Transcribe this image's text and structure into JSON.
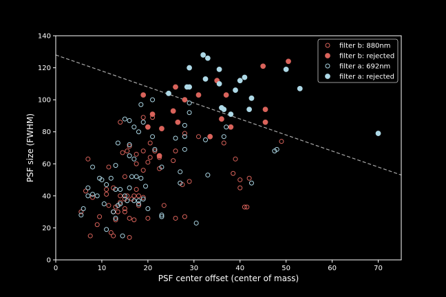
{
  "chart_data": {
    "type": "scatter",
    "title": "",
    "xlabel": "PSF center offset (center of mass)",
    "ylabel": "PSF size (FWHM)",
    "xlim": [
      0,
      75
    ],
    "ylim": [
      0,
      140
    ],
    "xticks": [
      0,
      10,
      20,
      30,
      40,
      50,
      60,
      70
    ],
    "yticks": [
      0,
      20,
      40,
      60,
      80,
      100,
      120,
      140
    ],
    "grid": false,
    "legend_position": "top-right",
    "threshold_line": {
      "style": "dashed",
      "color": "#aaaaaa",
      "x": [
        0,
        75
      ],
      "y": [
        128,
        53
      ]
    },
    "series": [
      {
        "name": "filter b: 880nm",
        "marker": "open-circle",
        "color": "#d9635b",
        "points": [
          [
            5.5,
            30
          ],
          [
            6.5,
            43
          ],
          [
            7,
            63
          ],
          [
            7.5,
            15
          ],
          [
            8,
            39
          ],
          [
            9,
            22
          ],
          [
            9.5,
            27
          ],
          [
            11,
            44
          ],
          [
            11,
            41
          ],
          [
            11.5,
            58
          ],
          [
            11.5,
            34
          ],
          [
            12,
            17
          ],
          [
            12.5,
            15
          ],
          [
            12.5,
            45
          ],
          [
            12.5,
            30
          ],
          [
            13,
            33
          ],
          [
            13,
            25
          ],
          [
            13.5,
            34
          ],
          [
            13.5,
            30
          ],
          [
            14,
            86
          ],
          [
            14,
            36
          ],
          [
            14,
            40
          ],
          [
            14.5,
            67
          ],
          [
            15,
            38
          ],
          [
            15,
            32
          ],
          [
            15,
            30
          ],
          [
            15,
            52
          ],
          [
            15.5,
            68
          ],
          [
            15.5,
            40
          ],
          [
            16,
            71
          ],
          [
            16,
            26
          ],
          [
            16,
            14
          ],
          [
            16.5,
            38
          ],
          [
            17,
            40
          ],
          [
            17,
            25
          ],
          [
            17.5,
            60
          ],
          [
            17.5,
            44
          ],
          [
            17.5,
            66
          ],
          [
            18,
            40
          ],
          [
            18,
            34
          ],
          [
            19,
            89
          ],
          [
            19,
            68
          ],
          [
            19,
            56
          ],
          [
            19,
            39
          ],
          [
            20,
            26
          ],
          [
            20,
            61
          ],
          [
            20.5,
            73
          ],
          [
            20.5,
            64
          ],
          [
            21,
            89
          ],
          [
            21.5,
            68
          ],
          [
            22.5,
            57
          ],
          [
            22.5,
            64
          ],
          [
            23.5,
            34
          ],
          [
            25.5,
            62
          ],
          [
            26,
            68
          ],
          [
            26,
            26
          ],
          [
            27.5,
            47
          ],
          [
            28,
            79
          ],
          [
            28,
            27
          ],
          [
            29,
            49
          ],
          [
            31,
            77
          ],
          [
            36.5,
            73
          ],
          [
            38.5,
            54
          ],
          [
            39,
            63
          ],
          [
            40,
            50
          ],
          [
            40,
            45
          ],
          [
            41,
            33
          ],
          [
            41.5,
            33
          ],
          [
            42,
            51
          ],
          [
            49,
            74
          ]
        ]
      },
      {
        "name": "filter b: rejected",
        "marker": "filled-circle",
        "color": "#d9635b",
        "points": [
          [
            19,
            103
          ],
          [
            20,
            83
          ],
          [
            21,
            91
          ],
          [
            22.5,
            65
          ],
          [
            23,
            82
          ],
          [
            25.5,
            93
          ],
          [
            26,
            108
          ],
          [
            26.5,
            86
          ],
          [
            28,
            100
          ],
          [
            31,
            103
          ],
          [
            33.5,
            77
          ],
          [
            35,
            112
          ],
          [
            36,
            88
          ],
          [
            37,
            103
          ],
          [
            38,
            83
          ],
          [
            45,
            121
          ],
          [
            45.5,
            94
          ],
          [
            45.5,
            86
          ],
          [
            50.5,
            124
          ]
        ]
      },
      {
        "name": "filter a: 692nm",
        "marker": "open-circle",
        "color": "#add8e6",
        "points": [
          [
            5.5,
            28
          ],
          [
            6,
            32
          ],
          [
            7,
            40
          ],
          [
            7,
            45
          ],
          [
            8,
            58
          ],
          [
            8,
            41
          ],
          [
            9,
            40
          ],
          [
            9.5,
            51
          ],
          [
            10,
            50
          ],
          [
            10.5,
            35
          ],
          [
            11,
            47
          ],
          [
            11,
            19
          ],
          [
            12,
            51
          ],
          [
            12.5,
            30
          ],
          [
            13,
            26
          ],
          [
            13,
            59
          ],
          [
            13,
            44
          ],
          [
            13.5,
            34
          ],
          [
            13.5,
            73
          ],
          [
            14,
            44
          ],
          [
            14,
            35
          ],
          [
            14.5,
            15
          ],
          [
            15,
            88
          ],
          [
            15,
            40
          ],
          [
            15.5,
            37
          ],
          [
            16,
            87
          ],
          [
            16,
            65
          ],
          [
            16,
            72
          ],
          [
            16,
            45
          ],
          [
            16.5,
            52
          ],
          [
            17,
            83
          ],
          [
            17,
            63
          ],
          [
            17,
            37
          ],
          [
            17.5,
            52
          ],
          [
            18,
            80
          ],
          [
            18,
            37
          ],
          [
            18,
            35
          ],
          [
            18.5,
            97
          ],
          [
            18.5,
            51
          ],
          [
            19,
            86
          ],
          [
            19,
            38
          ],
          [
            19.5,
            46
          ],
          [
            20,
            32
          ],
          [
            21,
            100
          ],
          [
            21,
            77
          ],
          [
            21.5,
            69
          ],
          [
            23,
            58
          ],
          [
            23,
            28
          ],
          [
            23,
            27
          ],
          [
            26,
            76
          ],
          [
            27,
            55
          ],
          [
            27,
            48
          ],
          [
            28,
            84
          ],
          [
            28,
            77
          ],
          [
            28,
            69
          ],
          [
            29,
            98
          ],
          [
            29,
            92
          ],
          [
            30.5,
            23
          ],
          [
            32.5,
            75
          ],
          [
            33,
            53
          ],
          [
            36.5,
            77
          ],
          [
            37,
            83
          ],
          [
            42.5,
            48
          ],
          [
            47.5,
            68
          ],
          [
            48,
            69
          ]
        ]
      },
      {
        "name": "filter a: rejected",
        "marker": "filled-circle",
        "color": "#add8e6",
        "points": [
          [
            24.5,
            104
          ],
          [
            28.5,
            108
          ],
          [
            29,
            108
          ],
          [
            29,
            120
          ],
          [
            32,
            128
          ],
          [
            32.5,
            113
          ],
          [
            33,
            126
          ],
          [
            35.5,
            119
          ],
          [
            35.5,
            110
          ],
          [
            36,
            95
          ],
          [
            36.5,
            94
          ],
          [
            38,
            91
          ],
          [
            39,
            106
          ],
          [
            40,
            112
          ],
          [
            41,
            114
          ],
          [
            42,
            94
          ],
          [
            42.5,
            101
          ],
          [
            50,
            119
          ],
          [
            53,
            107
          ],
          [
            70,
            79
          ]
        ]
      }
    ]
  }
}
